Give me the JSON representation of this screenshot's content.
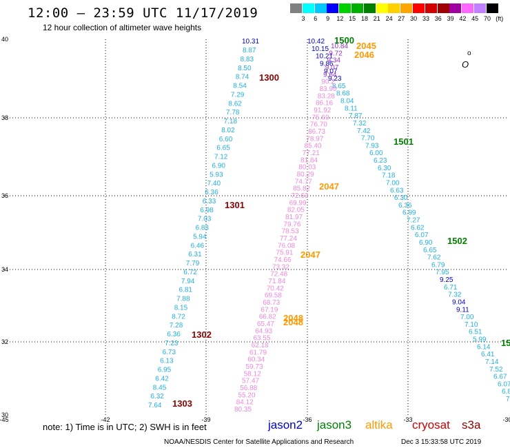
{
  "header": {
    "title": "12:00 — 23:59 UTC 11/17/2019",
    "subtitle": "12 hour collection of altimeter wave heights"
  },
  "scale": {
    "colors": [
      "#808080",
      "#00ffff",
      "#00c8ff",
      "#0000ff",
      "#00d000",
      "#00b000",
      "#008000",
      "#ffff00",
      "#ffd000",
      "#ffa500",
      "#ff0000",
      "#d00000",
      "#a00000",
      "#a000a0",
      "#ff66ff",
      "#c080ff",
      "#000000"
    ],
    "labels": [
      "3",
      "6",
      "9",
      "12",
      "15",
      "18",
      "21",
      "24",
      "27",
      "30",
      "33",
      "36",
      "39",
      "42",
      "45",
      "70",
      "(ft)"
    ]
  },
  "axes": {
    "x_ticks": [
      "-45",
      "-42",
      "-39",
      "-36",
      "-33",
      "-30"
    ],
    "y_ticks": [
      "40",
      "38",
      "36",
      "34",
      "32",
      "30"
    ]
  },
  "map": {
    "marker": "o",
    "land_label": "O"
  },
  "passes": [
    {
      "label": "1300",
      "color": "#8b0000"
    },
    {
      "label": "1301",
      "color": "#8b0000"
    },
    {
      "label": "1302",
      "color": "#8b0000"
    },
    {
      "label": "1303",
      "color": "#8b0000"
    },
    {
      "label": "1500",
      "color": "#008000"
    },
    {
      "label": "1501",
      "color": "#008000"
    },
    {
      "label": "1502",
      "color": "#008000"
    },
    {
      "label": "15",
      "color": "#008000"
    },
    {
      "label": "2045",
      "color": "#ff9900"
    },
    {
      "label": "2046",
      "color": "#ff9900"
    },
    {
      "label": "2047",
      "color": "#ff9900"
    },
    {
      "label": "2047",
      "color": "#ff9900"
    },
    {
      "label": "2048",
      "color": "#ff9900"
    },
    {
      "label": "2048",
      "color": "#ff9900"
    }
  ],
  "track_a": [
    "10.31",
    "8.87",
    "8.83",
    "8.50",
    "8.74",
    "8.54",
    "7.29",
    "8.62",
    "7.78",
    "7.18",
    "8.02",
    "6.60",
    "6.65",
    "7.12",
    "6.90",
    "5.93",
    "7.40",
    "6.36",
    "6.33",
    "6.98",
    "7.03",
    "6.83",
    "5.94",
    "6.46",
    "6.31",
    "7.79",
    "6.72",
    "7.94",
    "6.81",
    "7.88",
    "8.15",
    "8.72",
    "7.28",
    "6.36",
    "7.23",
    "6.73",
    "6.13",
    "6.95",
    "6.42",
    "8.45",
    "6.32",
    "7.64"
  ],
  "track_b": [
    "10.42",
    "10.15",
    "10.21",
    "9.86",
    "9.07",
    "9.23",
    "8.65",
    "8.68",
    "8.04",
    "8.11",
    "7.87",
    "7.32",
    "7.42",
    "7.70",
    "7.93",
    "6.00",
    "6.23",
    "6.30",
    "7.18",
    "7.00",
    "6.63",
    "6.30",
    "6.36",
    "6.99",
    "7.27",
    "6.62",
    "6.07",
    "6.90",
    "6.65",
    "7.62",
    "6.79",
    "7.95",
    "9.25",
    "6.71",
    "7.32",
    "9.04",
    "9.11",
    "7.00",
    "7.10",
    "6.51",
    "5.99",
    "6.14",
    "6.41",
    "7.14",
    "7.52",
    "6.67",
    "6.07",
    "6.8",
    "7."
  ],
  "track_c": [
    "10.84",
    "9.72",
    "9.34",
    "9.07",
    "9.64",
    "90.2",
    "83.90",
    "83.28",
    "86.16",
    "91.92",
    "75.69",
    "76.70",
    "86.73",
    "78.97",
    "85.40",
    "77.21",
    "81.84",
    "80.03",
    "80.29",
    "74.77",
    "85.82",
    "72.63",
    "69.99",
    "82.05",
    "81.97",
    "79.76",
    "78.53",
    "77.24",
    "76.08",
    "75.91",
    "74.66",
    "73.32",
    "72.48",
    "71.84",
    "70.42",
    "69.58",
    "68.73",
    "67.19",
    "66.82",
    "65.47",
    "64.93",
    "63.55",
    "62.18",
    "61.79",
    "60.34",
    "59.73",
    "58.12",
    "57.47",
    "56.88",
    "55.20",
    "84.12",
    "80.35"
  ],
  "track_c_last": "80.35",
  "footer": {
    "note": "note:  1) Time is in UTC;  2) SWH is in feet",
    "satellites": [
      {
        "name": "jason2",
        "color": "#0000cc"
      },
      {
        "name": "jason3",
        "color": "#008000"
      },
      {
        "name": "altika",
        "color": "#ff9900"
      },
      {
        "name": "cryosat",
        "color": "#cc0000"
      },
      {
        "name": "s3a",
        "color": "#8b0000"
      }
    ],
    "credit": "NOAA/NESDIS Center for Satellite Applications and Research",
    "timestamp": "Dec  3 15:33:58 UTC 2019"
  }
}
